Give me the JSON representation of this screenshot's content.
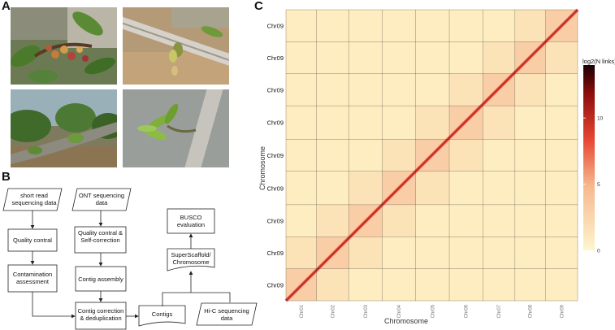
{
  "panels": {
    "a": "A",
    "b": "B",
    "c": "C"
  },
  "flowchart": {
    "short_read": "short read sequencing data",
    "ont": "ONT sequencing data",
    "quality_control": "Quality contral",
    "quality_self": "Quality contral & Self-correction",
    "contamination": "Contamination assessment",
    "contig_assembly": "Contig assembly",
    "contig_correction": "Contig correction & deduplication",
    "contigs": "Contigs",
    "hic": "Hi-C sequencing data",
    "superscaffold": "SuperScaffold/ Chromosome",
    "busco": "BUSCO evaluation"
  },
  "chart_data": {
    "type": "heatmap",
    "xlabel": "Chromosome",
    "ylabel": "Chromosome",
    "x_ticks": [
      "Chr01",
      "Chr02",
      "Chr03",
      "Chr04",
      "Chr05",
      "Chr06",
      "Chr07",
      "Chr08",
      "Chr09"
    ],
    "y_ticks": [
      "Chr09",
      "Chr09",
      "Chr09",
      "Chr09",
      "Chr09",
      "Chr09",
      "Chr09",
      "Chr09",
      "Chr09"
    ],
    "legend_title": "log2(N links)",
    "legend_ticks": [
      10,
      5,
      0
    ],
    "legend_range": [
      0,
      14
    ],
    "colors": {
      "low": "#fdf3c8",
      "mid": "#ef4b36",
      "high": "#1a0000"
    }
  }
}
